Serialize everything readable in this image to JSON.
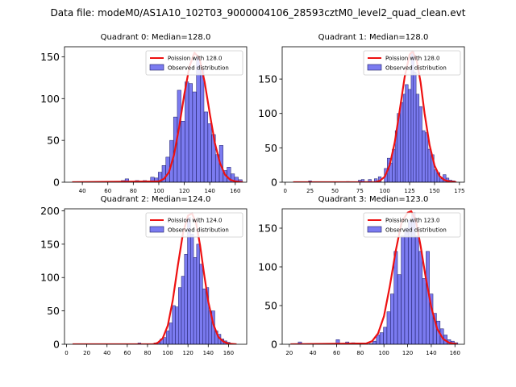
{
  "figure": {
    "suptitle": "Data file: modeM0/AS1A10_102T03_9000004106_28593cztM0_level2_quad_clean.evt"
  },
  "colors": {
    "bar_fill": "#7b7bf0",
    "bar_edge": "#1c1c66",
    "poisson_line": "#ee1111"
  },
  "chart_data": [
    {
      "type": "bar",
      "title": "Quadrant 0: Median=128.0",
      "legend": [
        "Poission with 128.0",
        "Observed distribution"
      ],
      "legend_placement": "top-right",
      "xlim": [
        26,
        169
      ],
      "ylim": [
        0,
        162
      ],
      "xticks": [
        40,
        60,
        80,
        100,
        120,
        140,
        160
      ],
      "yticks": [
        0,
        50,
        100,
        150
      ],
      "bin_width": 2.9,
      "bins": [
        [
          72,
          2
        ],
        [
          75,
          4
        ],
        [
          83,
          2
        ],
        [
          86,
          1
        ],
        [
          89,
          2
        ],
        [
          92,
          1
        ],
        [
          95,
          6
        ],
        [
          98,
          5
        ],
        [
          101,
          12
        ],
        [
          104,
          20
        ],
        [
          107,
          30
        ],
        [
          110,
          50
        ],
        [
          113,
          78
        ],
        [
          116,
          110
        ],
        [
          119,
          73
        ],
        [
          122,
          120
        ],
        [
          125,
          118
        ],
        [
          128,
          108
        ],
        [
          131,
          150
        ],
        [
          134,
          135
        ],
        [
          137,
          84
        ],
        [
          140,
          70
        ],
        [
          143,
          57
        ],
        [
          146,
          33
        ],
        [
          149,
          44
        ],
        [
          152,
          14
        ],
        [
          155,
          18
        ],
        [
          158,
          10
        ],
        [
          161,
          6
        ],
        [
          164,
          3
        ]
      ],
      "poisson": [
        [
          32,
          0
        ],
        [
          100,
          1
        ],
        [
          104,
          4
        ],
        [
          108,
          12
        ],
        [
          112,
          33
        ],
        [
          116,
          66
        ],
        [
          120,
          105
        ],
        [
          124,
          138
        ],
        [
          128,
          155
        ],
        [
          132,
          148
        ],
        [
          136,
          120
        ],
        [
          140,
          82
        ],
        [
          144,
          47
        ],
        [
          148,
          23
        ],
        [
          152,
          9
        ],
        [
          156,
          3
        ],
        [
          160,
          1
        ],
        [
          166,
          0
        ]
      ]
    },
    {
      "type": "bar",
      "title": "Quadrant 1: Median=128.0",
      "legend": [
        "Poission with 128.0",
        "Observed distribution"
      ],
      "legend_placement": "top-right",
      "xlim": [
        -3,
        180
      ],
      "ylim": [
        0,
        197
      ],
      "xticks": [
        0,
        25,
        50,
        75,
        100,
        125,
        150,
        175
      ],
      "yticks": [
        0,
        50,
        100,
        150
      ],
      "bin_width": 3.0,
      "bins": [
        [
          25,
          2
        ],
        [
          63,
          1
        ],
        [
          75,
          3
        ],
        [
          78,
          4
        ],
        [
          82,
          1
        ],
        [
          85,
          4
        ],
        [
          91,
          5
        ],
        [
          95,
          8
        ],
        [
          101,
          20
        ],
        [
          104,
          35
        ],
        [
          106,
          28
        ],
        [
          109,
          48
        ],
        [
          112,
          75
        ],
        [
          114,
          100
        ],
        [
          117,
          116
        ],
        [
          120,
          128
        ],
        [
          122,
          142
        ],
        [
          125,
          135
        ],
        [
          128,
          190
        ],
        [
          130,
          160
        ],
        [
          133,
          128
        ],
        [
          136,
          110
        ],
        [
          139,
          75
        ],
        [
          142,
          72
        ],
        [
          145,
          48
        ],
        [
          148,
          40
        ],
        [
          151,
          18
        ],
        [
          154,
          14
        ],
        [
          157,
          5
        ],
        [
          160,
          11
        ],
        [
          163,
          6
        ],
        [
          166,
          3
        ],
        [
          169,
          2
        ]
      ],
      "poisson": [
        [
          8,
          0
        ],
        [
          90,
          0
        ],
        [
          95,
          2
        ],
        [
          100,
          8
        ],
        [
          105,
          25
        ],
        [
          110,
          58
        ],
        [
          115,
          104
        ],
        [
          120,
          153
        ],
        [
          125,
          186
        ],
        [
          128,
          190
        ],
        [
          132,
          178
        ],
        [
          136,
          145
        ],
        [
          140,
          100
        ],
        [
          145,
          54
        ],
        [
          150,
          24
        ],
        [
          155,
          9
        ],
        [
          160,
          3
        ],
        [
          165,
          1
        ],
        [
          172,
          0
        ]
      ]
    },
    {
      "type": "bar",
      "title": "Quadrant 2: Median=124.0",
      "legend": [
        "Poission with 124.0",
        "Observed distribution"
      ],
      "legend_placement": "top-right",
      "xlim": [
        -2,
        178
      ],
      "ylim": [
        0,
        203
      ],
      "xticks": [
        0,
        20,
        40,
        60,
        80,
        100,
        120,
        140,
        160
      ],
      "yticks": [
        0,
        50,
        100,
        150,
        200
      ],
      "bin_width": 3.0,
      "bins": [
        [
          72,
          2
        ],
        [
          88,
          2
        ],
        [
          91,
          3
        ],
        [
          94,
          8
        ],
        [
          97,
          10
        ],
        [
          100,
          20
        ],
        [
          103,
          32
        ],
        [
          106,
          58
        ],
        [
          109,
          56
        ],
        [
          112,
          85
        ],
        [
          115,
          102
        ],
        [
          118,
          135
        ],
        [
          121,
          190
        ],
        [
          124,
          165
        ],
        [
          127,
          130
        ],
        [
          130,
          150
        ],
        [
          133,
          120
        ],
        [
          136,
          83
        ],
        [
          139,
          85
        ],
        [
          142,
          50
        ],
        [
          145,
          50
        ],
        [
          148,
          20
        ],
        [
          151,
          15
        ],
        [
          154,
          8
        ],
        [
          157,
          5
        ],
        [
          160,
          3
        ]
      ],
      "poisson": [
        [
          6,
          0
        ],
        [
          85,
          0
        ],
        [
          90,
          2
        ],
        [
          95,
          9
        ],
        [
          100,
          28
        ],
        [
          105,
          66
        ],
        [
          110,
          118
        ],
        [
          115,
          166
        ],
        [
          120,
          193
        ],
        [
          124,
          196
        ],
        [
          128,
          182
        ],
        [
          132,
          148
        ],
        [
          136,
          104
        ],
        [
          140,
          64
        ],
        [
          145,
          30
        ],
        [
          150,
          11
        ],
        [
          155,
          4
        ],
        [
          160,
          1
        ],
        [
          168,
          0
        ]
      ]
    },
    {
      "type": "bar",
      "title": "Quadrant 3: Median=123.0",
      "legend": [
        "Poission with 123.0",
        "Observed distribution"
      ],
      "legend_placement": "top-right",
      "xlim": [
        14,
        168
      ],
      "ylim": [
        0,
        175
      ],
      "xticks": [
        20,
        40,
        60,
        80,
        100,
        120,
        140,
        160
      ],
      "yticks": [
        0,
        50,
        100,
        150
      ],
      "bin_width": 2.9,
      "bins": [
        [
          29,
          3
        ],
        [
          45,
          1
        ],
        [
          61,
          6
        ],
        [
          64,
          1
        ],
        [
          69,
          3
        ],
        [
          74,
          2
        ],
        [
          85,
          1
        ],
        [
          89,
          1
        ],
        [
          92,
          4
        ],
        [
          95,
          12
        ],
        [
          98,
          15
        ],
        [
          101,
          22
        ],
        [
          104,
          42
        ],
        [
          107,
          65
        ],
        [
          110,
          120
        ],
        [
          113,
          90
        ],
        [
          116,
          140
        ],
        [
          119,
          150
        ],
        [
          122,
          160
        ],
        [
          125,
          170
        ],
        [
          128,
          140
        ],
        [
          131,
          120
        ],
        [
          134,
          85
        ],
        [
          137,
          120
        ],
        [
          140,
          65
        ],
        [
          143,
          40
        ],
        [
          146,
          30
        ],
        [
          149,
          20
        ],
        [
          152,
          12
        ],
        [
          155,
          6
        ],
        [
          158,
          4
        ],
        [
          161,
          2
        ]
      ],
      "poisson": [
        [
          21,
          0
        ],
        [
          85,
          1
        ],
        [
          90,
          4
        ],
        [
          95,
          14
        ],
        [
          100,
          36
        ],
        [
          105,
          75
        ],
        [
          110,
          121
        ],
        [
          115,
          158
        ],
        [
          120,
          170
        ],
        [
          123,
          172
        ],
        [
          127,
          160
        ],
        [
          131,
          127
        ],
        [
          135,
          89
        ],
        [
          140,
          48
        ],
        [
          145,
          20
        ],
        [
          150,
          7
        ],
        [
          155,
          2
        ],
        [
          162,
          0
        ]
      ]
    }
  ]
}
